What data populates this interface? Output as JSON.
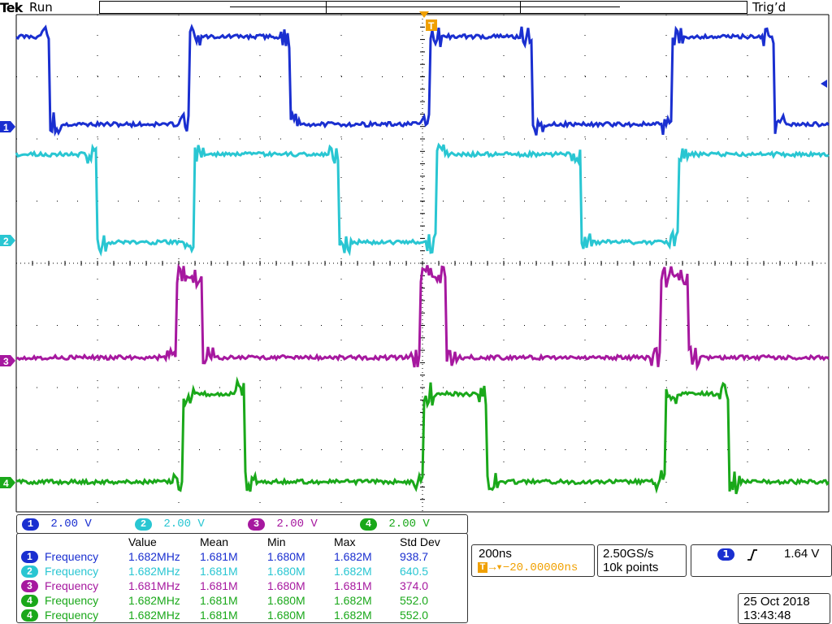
{
  "header": {
    "brand": "Tek",
    "run_state": "Run",
    "trigger_status": "Trig’d"
  },
  "channels": [
    {
      "id": "1",
      "color": "#1a2fd0",
      "scale": "2.00 V"
    },
    {
      "id": "2",
      "color": "#29c6d2",
      "scale": "2.00 V"
    },
    {
      "id": "3",
      "color": "#a6189f",
      "scale": "2.00 V"
    },
    {
      "id": "4",
      "color": "#1aa81a",
      "scale": "2.00 V"
    }
  ],
  "measurements": {
    "headers": [
      "Value",
      "Mean",
      "Min",
      "Max",
      "Std Dev"
    ],
    "rows": [
      {
        "ch": "1",
        "color": "#1a2fd0",
        "name": "Frequency",
        "value": "1.682MHz",
        "mean": "1.681M",
        "min": "1.680M",
        "max": "1.682M",
        "std": "938.7"
      },
      {
        "ch": "2",
        "color": "#29c6d2",
        "name": "Frequency",
        "value": "1.682MHz",
        "mean": "1.681M",
        "min": "1.680M",
        "max": "1.682M",
        "std": "640.5"
      },
      {
        "ch": "3",
        "color": "#a6189f",
        "name": "Frequency",
        "value": "1.681MHz",
        "mean": "1.681M",
        "min": "1.680M",
        "max": "1.681M",
        "std": "374.0"
      },
      {
        "ch": "4",
        "color": "#1aa81a",
        "name": "Frequency",
        "value": "1.682MHz",
        "mean": "1.681M",
        "min": "1.680M",
        "max": "1.682M",
        "std": "552.0"
      },
      {
        "ch": "4",
        "color": "#1aa81a",
        "name": "Frequency",
        "value": "1.682MHz",
        "mean": "1.681M",
        "min": "1.680M",
        "max": "1.682M",
        "std": "552.0"
      }
    ]
  },
  "horizontal": {
    "timebase": "200ns",
    "position": "→▾−20.00000ns",
    "trigger_icon": "T"
  },
  "acquisition": {
    "sample_rate": "2.50GS/s",
    "record_length": "10k points"
  },
  "trigger": {
    "source": "1",
    "slope_icon": "rising-edge-icon",
    "level": "1.64 V"
  },
  "datetime": {
    "date": "25 Oct  2018",
    "time": "13:43:48"
  },
  "colors": {
    "trigger_marker": "#f0a000",
    "grid": "#000000"
  }
}
